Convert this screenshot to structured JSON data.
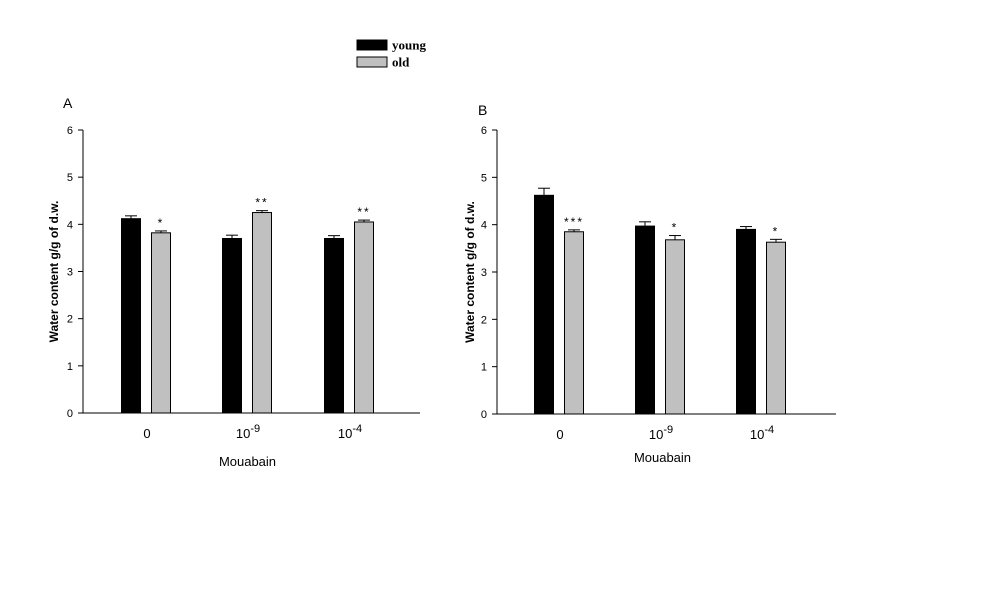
{
  "legend": {
    "entries": [
      {
        "label": "young",
        "color": "#000000"
      },
      {
        "label": "old",
        "color": "#c0c0c0"
      }
    ],
    "placement": "top-center"
  },
  "colors": {
    "young": "#000000",
    "old": "#c0c0c0",
    "axis": "#000000",
    "background": "#ffffff"
  },
  "chart_data": [
    {
      "type": "bar",
      "panel_label": "A",
      "xlabel": "Mouabain",
      "ylabel": "Water content g/g of d.w.",
      "ylim": [
        0,
        6
      ],
      "yticks": [
        "0",
        "1",
        "2",
        "3",
        "4",
        "5",
        "6"
      ],
      "grid": false,
      "categories": [
        {
          "base": "0",
          "exp": ""
        },
        {
          "base": "10",
          "exp": "-9"
        },
        {
          "base": "10",
          "exp": "-4"
        }
      ],
      "series": [
        {
          "name": "young",
          "values": [
            4.12,
            3.7,
            3.7
          ],
          "errors": [
            0.06,
            0.07,
            0.06
          ]
        },
        {
          "name": "old",
          "values": [
            3.82,
            4.25,
            4.05
          ],
          "errors": [
            0.04,
            0.04,
            0.04
          ]
        }
      ],
      "annotations": [
        {
          "series": "old",
          "category": 0,
          "text": "*"
        },
        {
          "series": "old",
          "category": 1,
          "text": "**"
        },
        {
          "series": "old",
          "category": 2,
          "text": "**"
        }
      ]
    },
    {
      "type": "bar",
      "panel_label": "B",
      "xlabel": "Mouabain",
      "ylabel": "Water content g/g of d.w.",
      "ylim": [
        0,
        6
      ],
      "yticks": [
        "0",
        "1",
        "2",
        "3",
        "4",
        "5",
        "6"
      ],
      "grid": false,
      "categories": [
        {
          "base": "0",
          "exp": ""
        },
        {
          "base": "10",
          "exp": "-9"
        },
        {
          "base": "10",
          "exp": "-4"
        }
      ],
      "series": [
        {
          "name": "young",
          "values": [
            4.62,
            3.97,
            3.9
          ],
          "errors": [
            0.15,
            0.09,
            0.06
          ]
        },
        {
          "name": "old",
          "values": [
            3.85,
            3.68,
            3.63
          ],
          "errors": [
            0.04,
            0.09,
            0.06
          ]
        }
      ],
      "annotations": [
        {
          "series": "old",
          "category": 0,
          "text": "***"
        },
        {
          "series": "old",
          "category": 1,
          "text": "*"
        },
        {
          "series": "old",
          "category": 2,
          "text": "*"
        }
      ]
    }
  ]
}
